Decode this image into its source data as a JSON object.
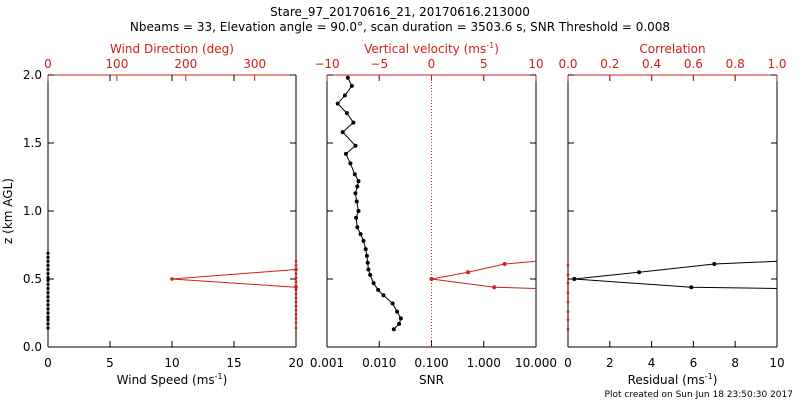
{
  "header": {
    "title_line1": "Stare_97_20170616_21, 20170616.213000",
    "title_line2": "Nbeams = 33, Elevation angle = 90.0°, scan duration = 3503.6 s, SNR Threshold = 0.008"
  },
  "footer": {
    "created": "Plot created on Sun Jun 18 23:50:30 2017"
  },
  "colors": {
    "black": "#000000",
    "red": "#d0201a"
  },
  "chart_data": [
    {
      "type": "line",
      "panel": "left",
      "ylabel": "z (km AGL)",
      "ylim": [
        0,
        2
      ],
      "yticks": [
        0.0,
        0.5,
        1.0,
        1.5,
        2.0
      ],
      "ytick_labels": [
        "0.0",
        "0.5",
        "1.0",
        "1.5",
        "2.0"
      ],
      "xlabel_bottom": "Wind Speed (ms",
      "xlabel_bottom_sup": "-1",
      "xlabel_bottom_end": ")",
      "xlim_bottom": [
        0,
        20
      ],
      "xticks_bottom": [
        0,
        5,
        10,
        15,
        20
      ],
      "xtick_labels_bottom": [
        "0",
        "5",
        "10",
        "15",
        "20"
      ],
      "xlabel_top": "Wind Direction (deg)",
      "xlim_top": [
        0,
        360
      ],
      "xticks_top": [
        0,
        100,
        200,
        300
      ],
      "xtick_labels_top": [
        "0",
        "100",
        "200",
        "300"
      ],
      "series": [
        {
          "color": "#d0201a",
          "axis": "bottom",
          "x": [
            20,
            10,
            20
          ],
          "y": [
            0.57,
            0.5,
            0.44
          ]
        }
      ],
      "speed_markers": {
        "color": "#000000",
        "axis": "bottom",
        "x": 0,
        "y": [
          0.14,
          0.17,
          0.2,
          0.22,
          0.25,
          0.28,
          0.31,
          0.34,
          0.37,
          0.4,
          0.43,
          0.46,
          0.49,
          0.51,
          0.54,
          0.57,
          0.6,
          0.63,
          0.66,
          0.69
        ]
      },
      "direction_markers": {
        "color": "#d0201a",
        "axis": "top",
        "x": 360,
        "y": [
          0.14,
          0.18,
          0.21,
          0.24,
          0.27,
          0.3,
          0.33,
          0.36,
          0.39,
          0.42,
          0.45,
          0.48,
          0.51,
          0.54,
          0.57,
          0.6,
          0.63
        ]
      }
    },
    {
      "type": "line",
      "panel": "middle",
      "xlabel_bottom": "SNR",
      "xscale_bottom": "log",
      "xlim_bottom": [
        0.001,
        10
      ],
      "xticks_bottom": [
        0.001,
        0.01,
        0.1,
        1,
        10
      ],
      "xtick_labels_bottom": [
        "0.001",
        "0.010",
        "0.100",
        "1.000",
        "10.000"
      ],
      "xlabel_top": "Vertical velocity (ms",
      "xlabel_top_sup": "-1",
      "xlabel_top_end": ")",
      "xlim_top": [
        -10,
        10
      ],
      "xticks_top": [
        -10,
        -5,
        0,
        5,
        10
      ],
      "xtick_labels_top": [
        "−10",
        "−5",
        "0",
        "5",
        "10"
      ],
      "zero_line_top": 0,
      "series": [
        {
          "axis": "bottom",
          "color": "#000000",
          "x": [
            0.019,
            0.024,
            0.026,
            0.022,
            0.018,
            0.012,
            0.0095,
            0.0078,
            0.0067,
            0.0062,
            0.006,
            0.0058,
            0.0055,
            0.005,
            0.0044,
            0.0038,
            0.0036,
            0.004,
            0.0037,
            0.0035,
            0.0038,
            0.004,
            0.0034,
            0.0028,
            0.0023,
            0.0035,
            0.002,
            0.0032,
            0.0024,
            0.0016,
            0.0022,
            0.003,
            0.0025
          ],
          "y": [
            0.13,
            0.17,
            0.21,
            0.26,
            0.32,
            0.38,
            0.42,
            0.47,
            0.53,
            0.57,
            0.62,
            0.67,
            0.72,
            0.78,
            0.83,
            0.88,
            0.95,
            1.0,
            1.07,
            1.13,
            1.18,
            1.22,
            1.27,
            1.35,
            1.42,
            1.48,
            1.58,
            1.65,
            1.72,
            1.79,
            1.85,
            1.92,
            1.98
          ]
        },
        {
          "axis": "top",
          "color": "#d0201a",
          "x": [
            10,
            7.0,
            3.5,
            0.0,
            6.0,
            10
          ],
          "y": [
            0.63,
            0.61,
            0.55,
            0.5,
            0.44,
            0.43
          ]
        }
      ]
    },
    {
      "type": "line",
      "panel": "right",
      "xlabel_bottom": "Residual (ms",
      "xlabel_bottom_sup": "-1",
      "xlabel_bottom_end": ")",
      "xlim_bottom": [
        0,
        10
      ],
      "xticks_bottom": [
        0,
        2,
        4,
        6,
        8,
        10
      ],
      "xtick_labels_bottom": [
        "0",
        "2",
        "4",
        "6",
        "8",
        "10"
      ],
      "xlabel_top": "Correlation",
      "xlim_top": [
        0,
        1
      ],
      "xticks_top": [
        0.0,
        0.2,
        0.4,
        0.6,
        0.8,
        1.0
      ],
      "xtick_labels_top": [
        "0.0",
        "0.2",
        "0.4",
        "0.6",
        "0.8",
        "1.0"
      ],
      "series": [
        {
          "axis": "bottom",
          "color": "#000000",
          "x": [
            10,
            7.0,
            3.4,
            0.3,
            5.9,
            10
          ],
          "y": [
            0.63,
            0.61,
            0.55,
            0.5,
            0.44,
            0.43
          ]
        }
      ],
      "correlation_markers": {
        "axis": "top",
        "color": "#d0201a",
        "x": 0.0,
        "y": [
          0.13,
          0.2,
          0.26,
          0.33,
          0.4,
          0.47,
          0.53,
          0.6
        ]
      }
    }
  ]
}
